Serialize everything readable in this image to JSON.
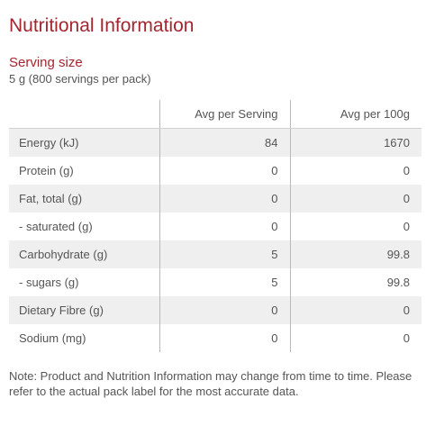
{
  "colors": {
    "accent": "#a3262f",
    "text": "#555555",
    "row_shade": "#efefef",
    "divider": "#b9b9b9"
  },
  "title": "Nutritional Information",
  "serving": {
    "heading": "Serving size",
    "value": "5 g (800 servings per pack)"
  },
  "table": {
    "columns": [
      "",
      "Avg per Serving",
      "Avg per 100g"
    ],
    "rows": [
      {
        "name": "Energy (kJ)",
        "per_serving": "84",
        "per_100g": "1670"
      },
      {
        "name": "Protein (g)",
        "per_serving": "0",
        "per_100g": "0"
      },
      {
        "name": "Fat, total (g)",
        "per_serving": "0",
        "per_100g": "0"
      },
      {
        "name": "- saturated (g)",
        "per_serving": "0",
        "per_100g": "0"
      },
      {
        "name": "Carbohydrate (g)",
        "per_serving": "5",
        "per_100g": "99.8"
      },
      {
        "name": "- sugars (g)",
        "per_serving": "5",
        "per_100g": "99.8"
      },
      {
        "name": "Dietary Fibre (g)",
        "per_serving": "0",
        "per_100g": "0"
      },
      {
        "name": "Sodium (mg)",
        "per_serving": "0",
        "per_100g": "0"
      }
    ]
  },
  "note": "Note: Product and Nutrition Information may change from time to time. Please refer to the actual pack label for the most accurate data."
}
